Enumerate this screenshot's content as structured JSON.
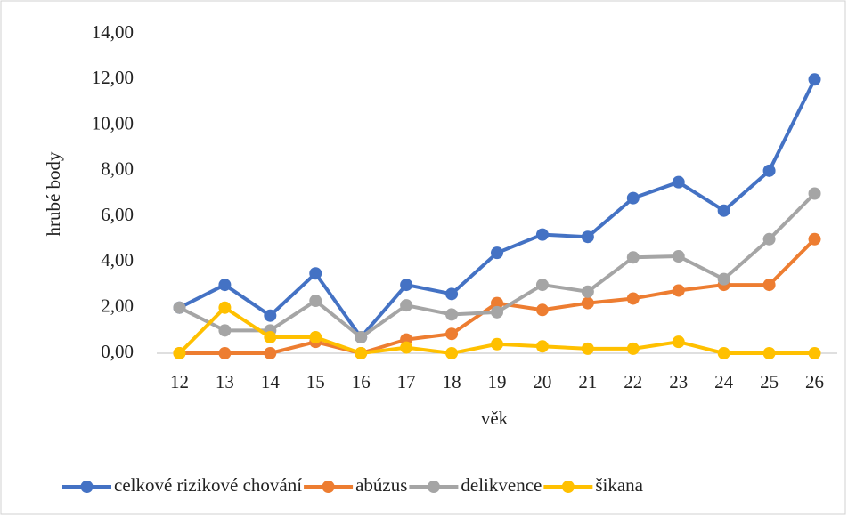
{
  "chart_data": {
    "type": "line",
    "x_label": "věk",
    "y_label": "hrubé body",
    "categories": [
      "12",
      "13",
      "14",
      "15",
      "16",
      "17",
      "18",
      "19",
      "20",
      "21",
      "22",
      "23",
      "24",
      "25",
      "26"
    ],
    "series": [
      {
        "name": "celkové rizikové chování",
        "color": "#4472c4",
        "values": [
          2.0,
          3.0,
          1.65,
          3.5,
          0.7,
          3.0,
          2.6,
          4.4,
          5.2,
          5.1,
          6.8,
          7.5,
          6.25,
          8.0,
          12.0
        ]
      },
      {
        "name": "abúzus",
        "color": "#ed7d31",
        "values": [
          0,
          0,
          0,
          0.5,
          0,
          0.6,
          0.85,
          2.2,
          1.9,
          2.2,
          2.4,
          2.75,
          3.0,
          3.0,
          5.0
        ]
      },
      {
        "name": "delikvence",
        "color": "#a5a5a5",
        "values": [
          2.0,
          1.0,
          1.0,
          2.3,
          0.7,
          2.1,
          1.7,
          1.8,
          3.0,
          2.7,
          4.2,
          4.25,
          3.25,
          5.0,
          7.0
        ]
      },
      {
        "name": "šikana",
        "color": "#ffc000",
        "values": [
          0,
          2.0,
          0.7,
          0.7,
          0,
          0.25,
          0,
          0.4,
          0.3,
          0.2,
          0.2,
          0.5,
          0,
          0,
          0
        ]
      }
    ],
    "ylim": [
      0,
      14
    ],
    "yticks": [
      {
        "value": 0,
        "label": "0,00"
      },
      {
        "value": 2,
        "label": "2,00"
      },
      {
        "value": 4,
        "label": "4,00"
      },
      {
        "value": 6,
        "label": "6,00"
      },
      {
        "value": 8,
        "label": "8,00"
      },
      {
        "value": 10,
        "label": "10,00"
      },
      {
        "value": 12,
        "label": "12,00"
      },
      {
        "value": 14,
        "label": "14,00"
      }
    ],
    "grid": false,
    "legend": "bottom"
  }
}
